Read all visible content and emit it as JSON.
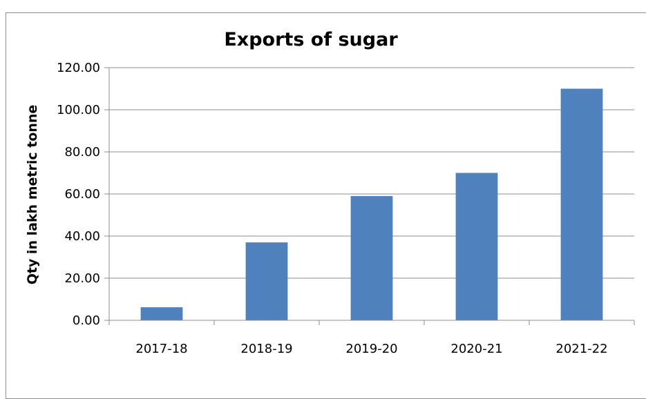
{
  "chart_data": {
    "type": "bar",
    "title": "Exports of sugar",
    "xlabel": "",
    "ylabel": "Qty in lakh metric tonne",
    "categories": [
      "2017-18",
      "2018-19",
      "2019-20",
      "2020-21",
      "2021-22"
    ],
    "values": [
      6.2,
      37.0,
      59.0,
      70.0,
      110.0
    ],
    "ylim": [
      0,
      120
    ],
    "yticks": [
      "0.00",
      "20.00",
      "40.00",
      "60.00",
      "80.00",
      "100.00",
      "120.00"
    ],
    "grid": true,
    "legend": "none",
    "bar_color": "#4f81bd"
  }
}
